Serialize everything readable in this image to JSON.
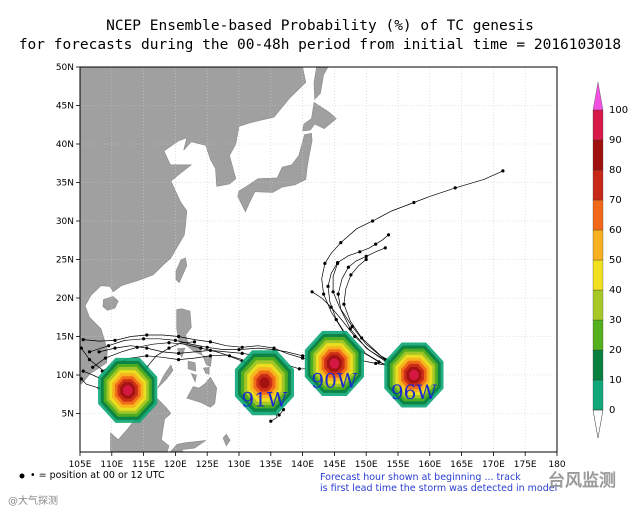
{
  "title": {
    "line1": "NCEP Ensemble-based Probability (%) of TC genesis",
    "line2": "for forecasts during the 00-48h period from initial time = 2016103018"
  },
  "axes": {
    "lon_min": 105,
    "lon_max": 180,
    "lat_min": 0,
    "lat_max": 50,
    "x_ticks": [
      "105E",
      "110E",
      "115E",
      "120E",
      "125E",
      "130E",
      "135E",
      "140E",
      "145E",
      "150E",
      "155E",
      "160E",
      "165E",
      "170E",
      "175E",
      "180"
    ],
    "y_ticks": [
      "5N",
      "10N",
      "15N",
      "20N",
      "25N",
      "30N",
      "35N",
      "40N",
      "45N",
      "50N"
    ]
  },
  "colorbar": {
    "labels": [
      "0",
      "10",
      "20",
      "30",
      "40",
      "50",
      "60",
      "70",
      "80",
      "90",
      "100"
    ],
    "colors": [
      "#10a878",
      "#0a8040",
      "#55b020",
      "#a8c828",
      "#f0e020",
      "#f8b020",
      "#f06818",
      "#c82818",
      "#a01010",
      "#d81848",
      "#f050e0"
    ]
  },
  "storms": [
    {
      "label": "",
      "lon": 112.5,
      "lat": 8.0,
      "peak": 100
    },
    {
      "label": "91W",
      "lon": 134.0,
      "lat": 9.0,
      "peak": 90
    },
    {
      "label": "90W",
      "lon": 145.0,
      "lat": 11.5,
      "peak": 100
    },
    {
      "label": "96W",
      "lon": 157.5,
      "lat": 10.0,
      "peak": 100
    }
  ],
  "storm_color": "#1a2ad0",
  "land_color": "#a0a0a0",
  "legend": {
    "symbol": "• =",
    "text": "position at 00 or 12 UTC"
  },
  "forecast_note": {
    "line1": "Forecast hour shown at beginning ... track",
    "line2": "is first lead time the storm was detected in model"
  },
  "watermark": {
    "left": "@大气探测",
    "right": "台风监测"
  }
}
